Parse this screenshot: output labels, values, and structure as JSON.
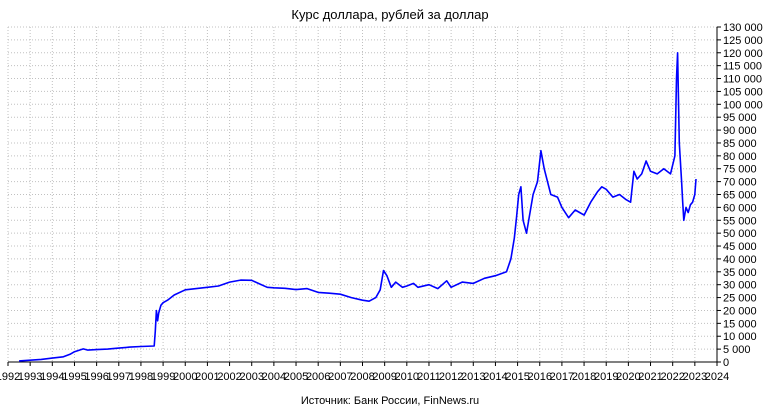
{
  "chart_data": {
    "type": "line",
    "title": "Курс доллара, рублей за доллар",
    "source": "Источник: Банк России, FinNews.ru",
    "xlim": [
      1992,
      2024
    ],
    "ylim": [
      0,
      130000
    ],
    "grid": true,
    "y_ticks": [
      "0",
      "5 000",
      "10 000",
      "15 000",
      "20 000",
      "25 000",
      "30 000",
      "35 000",
      "40 000",
      "45 000",
      "50 000",
      "55 000",
      "60 000",
      "65 000",
      "70 000",
      "75 000",
      "80 000",
      "85 000",
      "90 000",
      "95 000",
      "100 000",
      "105 000",
      "110 000",
      "115 000",
      "120 000",
      "125 000",
      "130 000"
    ],
    "x_ticks": [
      "1992",
      "1993",
      "1994",
      "1995",
      "1996",
      "1997",
      "1998",
      "1999",
      "2000",
      "2001",
      "2002",
      "2003",
      "2004",
      "2005",
      "2006",
      "2007",
      "2008",
      "2009",
      "2010",
      "2011",
      "2012",
      "2013",
      "2014",
      "2015",
      "2016",
      "2017",
      "2018",
      "2019",
      "2020",
      "2021",
      "2022",
      "2023",
      "2024"
    ],
    "series_color": "#0000ff",
    "series": [
      {
        "x": [
          1992.5,
          1993.0,
          1993.5,
          1994.0,
          1994.5,
          1994.8,
          1995.0,
          1995.4,
          1995.6,
          1996.0,
          1996.5,
          1997.0,
          1997.5,
          1998.0,
          1998.6,
          1998.65,
          1998.7,
          1998.75,
          1998.8,
          1998.9,
          1999.0,
          1999.2,
          1999.5,
          2000.0,
          2000.5,
          2001.0,
          2001.5,
          2002.0,
          2002.5,
          2003.0,
          2003.3,
          2003.7,
          2004.0,
          2004.5,
          2005.0,
          2005.5,
          2006.0,
          2006.5,
          2007.0,
          2007.5,
          2008.0,
          2008.3,
          2008.6,
          2008.8,
          2008.95,
          2009.1,
          2009.3,
          2009.5,
          2009.8,
          2010.0,
          2010.3,
          2010.5,
          2011.0,
          2011.4,
          2011.8,
          2012.0,
          2012.5,
          2013.0,
          2013.5,
          2014.0,
          2014.5,
          2014.7,
          2014.85,
          2014.95,
          2015.05,
          2015.15,
          2015.25,
          2015.4,
          2015.6,
          2015.7,
          2015.9,
          2016.05,
          2016.2,
          2016.5,
          2016.8,
          2017.0,
          2017.3,
          2017.6,
          2017.8,
          2018.0,
          2018.3,
          2018.6,
          2018.8,
          2019.0,
          2019.3,
          2019.6,
          2019.9,
          2020.1,
          2020.25,
          2020.4,
          2020.6,
          2020.8,
          2021.0,
          2021.3,
          2021.6,
          2021.9,
          2022.1,
          2022.17,
          2022.22,
          2022.3,
          2022.4,
          2022.45,
          2022.5,
          2022.6,
          2022.7,
          2022.8,
          2022.9,
          2023.0,
          2023.05
        ],
        "y": [
          415,
          700,
          1000,
          1500,
          2000,
          3000,
          4000,
          5100,
          4600,
          4800,
          5000,
          5400,
          5800,
          6000,
          6200,
          12000,
          20000,
          16000,
          19000,
          22000,
          23000,
          24000,
          26000,
          28000,
          28500,
          29000,
          29500,
          31000,
          31800,
          31700,
          30500,
          29000,
          28800,
          28600,
          28100,
          28500,
          27000,
          26700,
          26300,
          25000,
          24000,
          23600,
          25000,
          28000,
          35500,
          33500,
          29000,
          31000,
          29000,
          29500,
          30500,
          29000,
          30000,
          28500,
          31500,
          29000,
          31000,
          30500,
          32500,
          33500,
          35000,
          40000,
          48000,
          56000,
          65000,
          68000,
          55000,
          50000,
          60000,
          65000,
          70000,
          82000,
          75000,
          65000,
          64000,
          60000,
          56000,
          59000,
          58000,
          57000,
          62000,
          66000,
          68000,
          67000,
          64000,
          65000,
          63000,
          62000,
          74000,
          71000,
          73000,
          78000,
          74000,
          73000,
          75000,
          73000,
          80000,
          110000,
          120000,
          85000,
          70000,
          62000,
          55000,
          60000,
          58000,
          61000,
          62000,
          65000,
          71000
        ]
      }
    ]
  }
}
